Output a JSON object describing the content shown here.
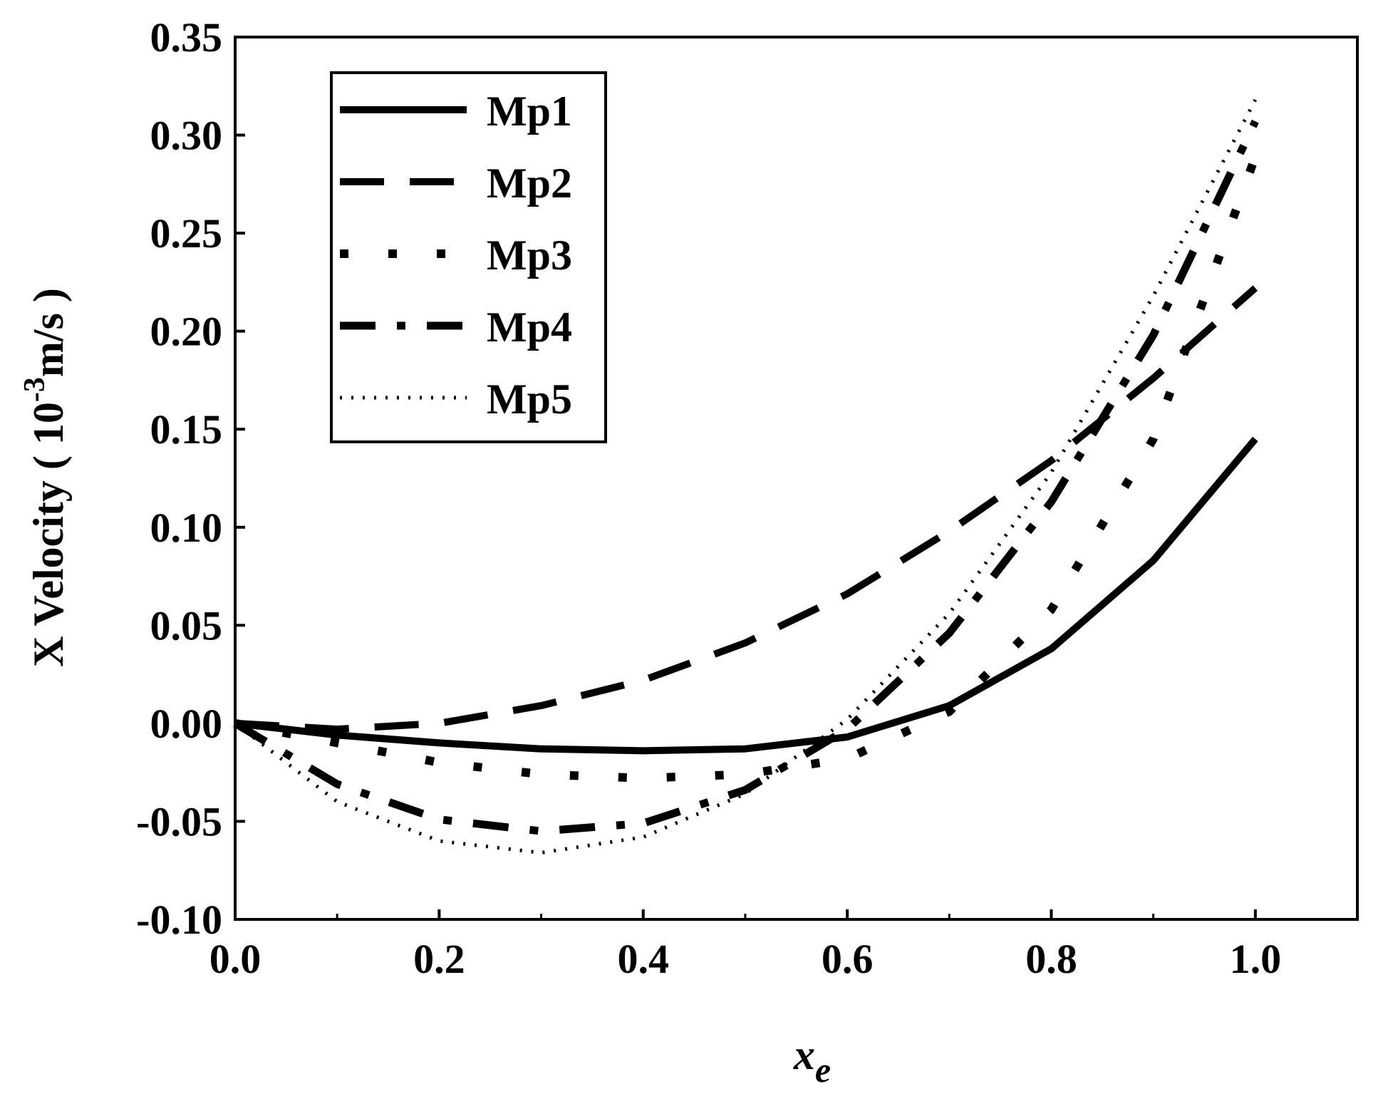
{
  "chart_data": {
    "type": "line",
    "title": "",
    "xlabel": "x",
    "xlabel_subscript": "e",
    "ylabel_prefix": "X Velocity ( 10",
    "ylabel_superscript": "-3",
    "ylabel_suffix": "m/s )",
    "xlim": [
      0.0,
      1.1
    ],
    "ylim": [
      -0.1,
      0.35
    ],
    "xticks": [
      0.0,
      0.2,
      0.4,
      0.6,
      0.8,
      1.0
    ],
    "xtick_labels": [
      "0.0",
      "0.2",
      "0.4",
      "0.6",
      "0.8",
      "1.0"
    ],
    "yticks": [
      -0.1,
      -0.05,
      0.0,
      0.05,
      0.1,
      0.15,
      0.2,
      0.25,
      0.3,
      0.35
    ],
    "ytick_labels": [
      "-0.10",
      "-0.05",
      "0.00",
      "0.05",
      "0.10",
      "0.15",
      "0.20",
      "0.25",
      "0.30",
      "0.35"
    ],
    "grid": false,
    "legend_position": "top-left",
    "x": [
      0.0,
      0.1,
      0.2,
      0.3,
      0.4,
      0.5,
      0.6,
      0.7,
      0.8,
      0.9,
      1.0
    ],
    "series": [
      {
        "name": "Mp1",
        "style": "solid",
        "values": [
          0.0,
          -0.006,
          -0.01,
          -0.013,
          -0.014,
          -0.013,
          -0.007,
          0.009,
          0.038,
          0.083,
          0.145
        ]
      },
      {
        "name": "Mp2",
        "style": "dash",
        "values": [
          0.0,
          -0.003,
          0.0,
          0.009,
          0.022,
          0.041,
          0.066,
          0.098,
          0.134,
          0.176,
          0.222
        ]
      },
      {
        "name": "Mp3",
        "style": "dot",
        "values": [
          0.0,
          -0.01,
          -0.02,
          -0.026,
          -0.028,
          -0.026,
          -0.018,
          0.006,
          0.058,
          0.145,
          0.289
        ]
      },
      {
        "name": "Mp4",
        "style": "dashdot",
        "values": [
          0.0,
          -0.031,
          -0.049,
          -0.055,
          -0.051,
          -0.034,
          -0.003,
          0.046,
          0.113,
          0.198,
          0.307
        ]
      },
      {
        "name": "Mp5",
        "style": "fine-dot",
        "values": [
          0.0,
          -0.04,
          -0.06,
          -0.066,
          -0.058,
          -0.036,
          0.002,
          0.056,
          0.128,
          0.218,
          0.318
        ]
      }
    ]
  }
}
